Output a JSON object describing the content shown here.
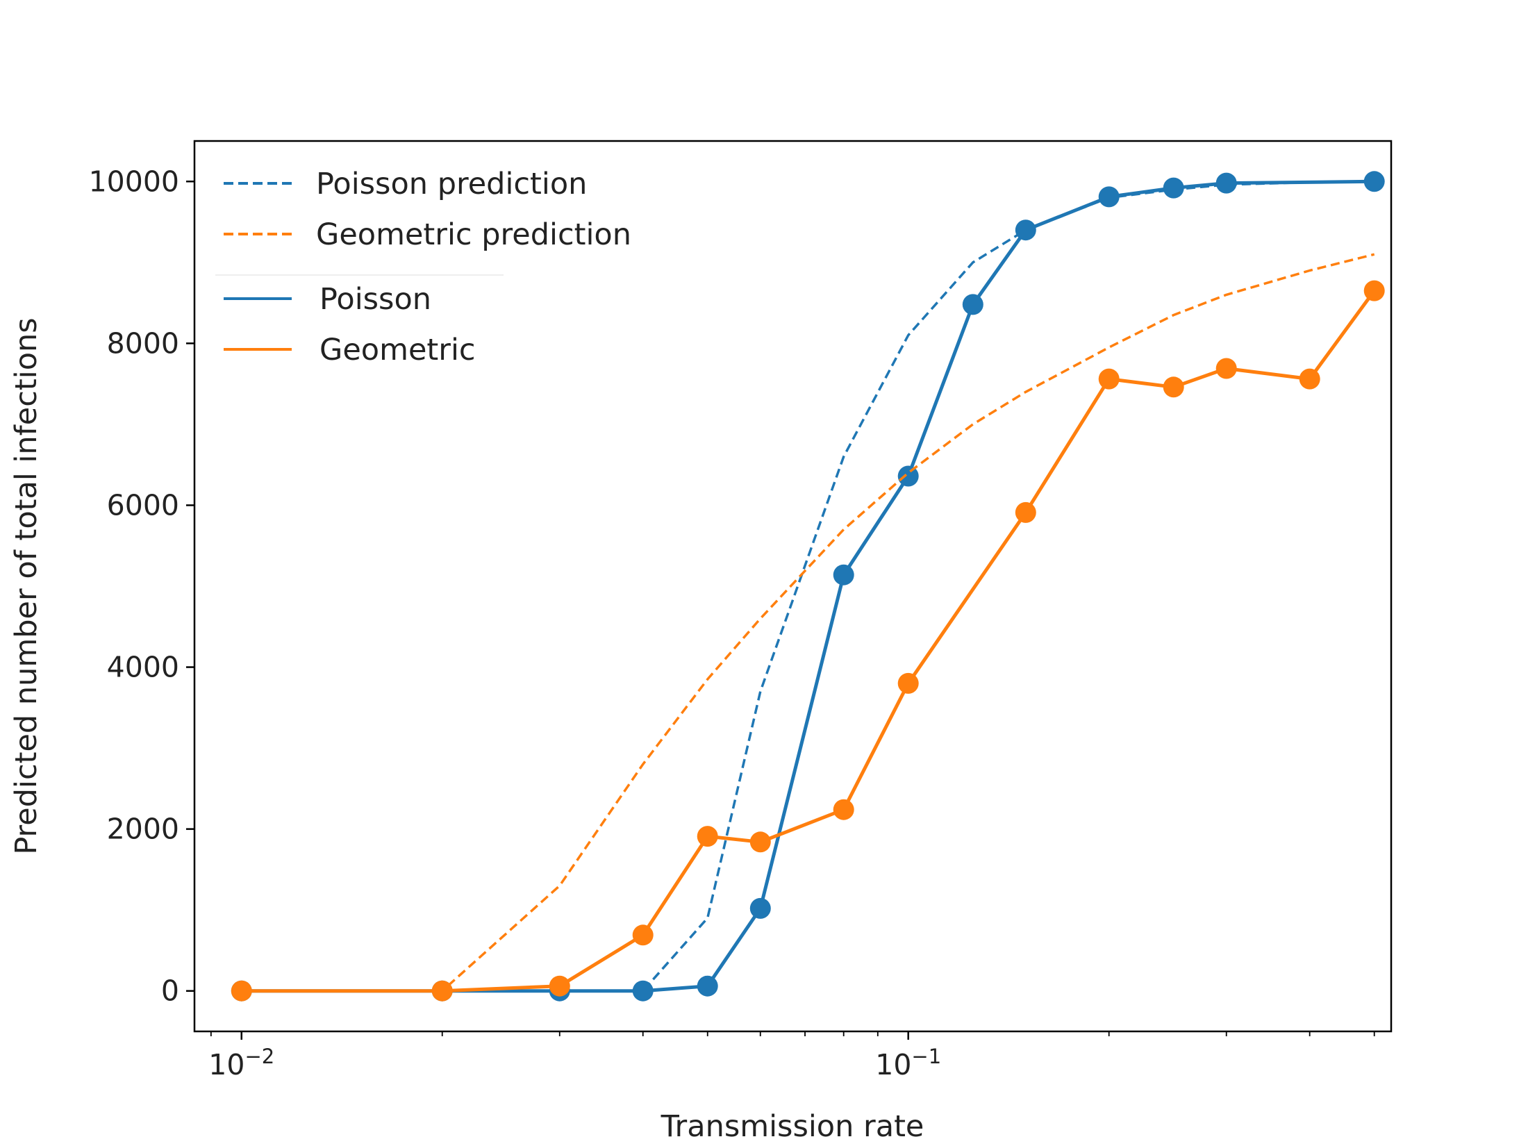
{
  "chart_data": {
    "type": "line",
    "title": "",
    "xlabel": "Transmission rate",
    "ylabel": "Predicted number of total infections",
    "xscale": "log",
    "xlim": [
      0.0085,
      0.53
    ],
    "ylim": [
      -500,
      10500
    ],
    "xticks": [
      {
        "value": 0.01,
        "base": "10",
        "exp": "−2"
      },
      {
        "value": 0.1,
        "base": "10",
        "exp": "−1"
      }
    ],
    "yticks": [
      {
        "value": 0,
        "label": "0"
      },
      {
        "value": 2000,
        "label": "2000"
      },
      {
        "value": 4000,
        "label": "4000"
      },
      {
        "value": 6000,
        "label": "6000"
      },
      {
        "value": 8000,
        "label": "8000"
      },
      {
        "value": 10000,
        "label": "10000"
      }
    ],
    "grid": false,
    "legend_position": "top-left",
    "series": [
      {
        "name": "Poisson prediction",
        "style": "dashed",
        "color": "#1f77b4",
        "x": [
          0.01,
          0.02,
          0.03,
          0.04,
          0.05,
          0.06,
          0.08,
          0.1,
          0.125,
          0.15,
          0.2,
          0.25,
          0.3,
          0.4,
          0.5
        ],
        "y": [
          0,
          0,
          0,
          0,
          900,
          3700,
          6600,
          8100,
          9000,
          9400,
          9800,
          9900,
          9960,
          9990,
          10000
        ]
      },
      {
        "name": "Geometric prediction",
        "style": "dashed",
        "color": "#ff7f0e",
        "x": [
          0.01,
          0.02,
          0.03,
          0.04,
          0.05,
          0.06,
          0.08,
          0.1,
          0.125,
          0.15,
          0.2,
          0.25,
          0.3,
          0.4,
          0.5
        ],
        "y": [
          0,
          0,
          1300,
          2800,
          3850,
          4600,
          5700,
          6400,
          7000,
          7400,
          7950,
          8350,
          8600,
          8900,
          9100
        ]
      },
      {
        "name": "Poisson",
        "style": "solid",
        "color": "#1f77b4",
        "x": [
          0.01,
          0.02,
          0.03,
          0.04,
          0.05,
          0.06,
          0.08,
          0.1,
          0.125,
          0.15,
          0.2,
          0.25,
          0.3,
          0.5
        ],
        "y": [
          0,
          0,
          0,
          0,
          60,
          1020,
          5140,
          6360,
          8480,
          9400,
          9810,
          9920,
          9980,
          10000
        ]
      },
      {
        "name": "Geometric",
        "style": "solid",
        "color": "#ff7f0e",
        "x": [
          0.01,
          0.02,
          0.03,
          0.04,
          0.05,
          0.06,
          0.08,
          0.1,
          0.15,
          0.2,
          0.25,
          0.3,
          0.4,
          0.5
        ],
        "y": [
          0,
          0,
          60,
          690,
          1910,
          1840,
          2240,
          3800,
          5910,
          7560,
          7460,
          7690,
          7560,
          8650
        ]
      }
    ]
  }
}
